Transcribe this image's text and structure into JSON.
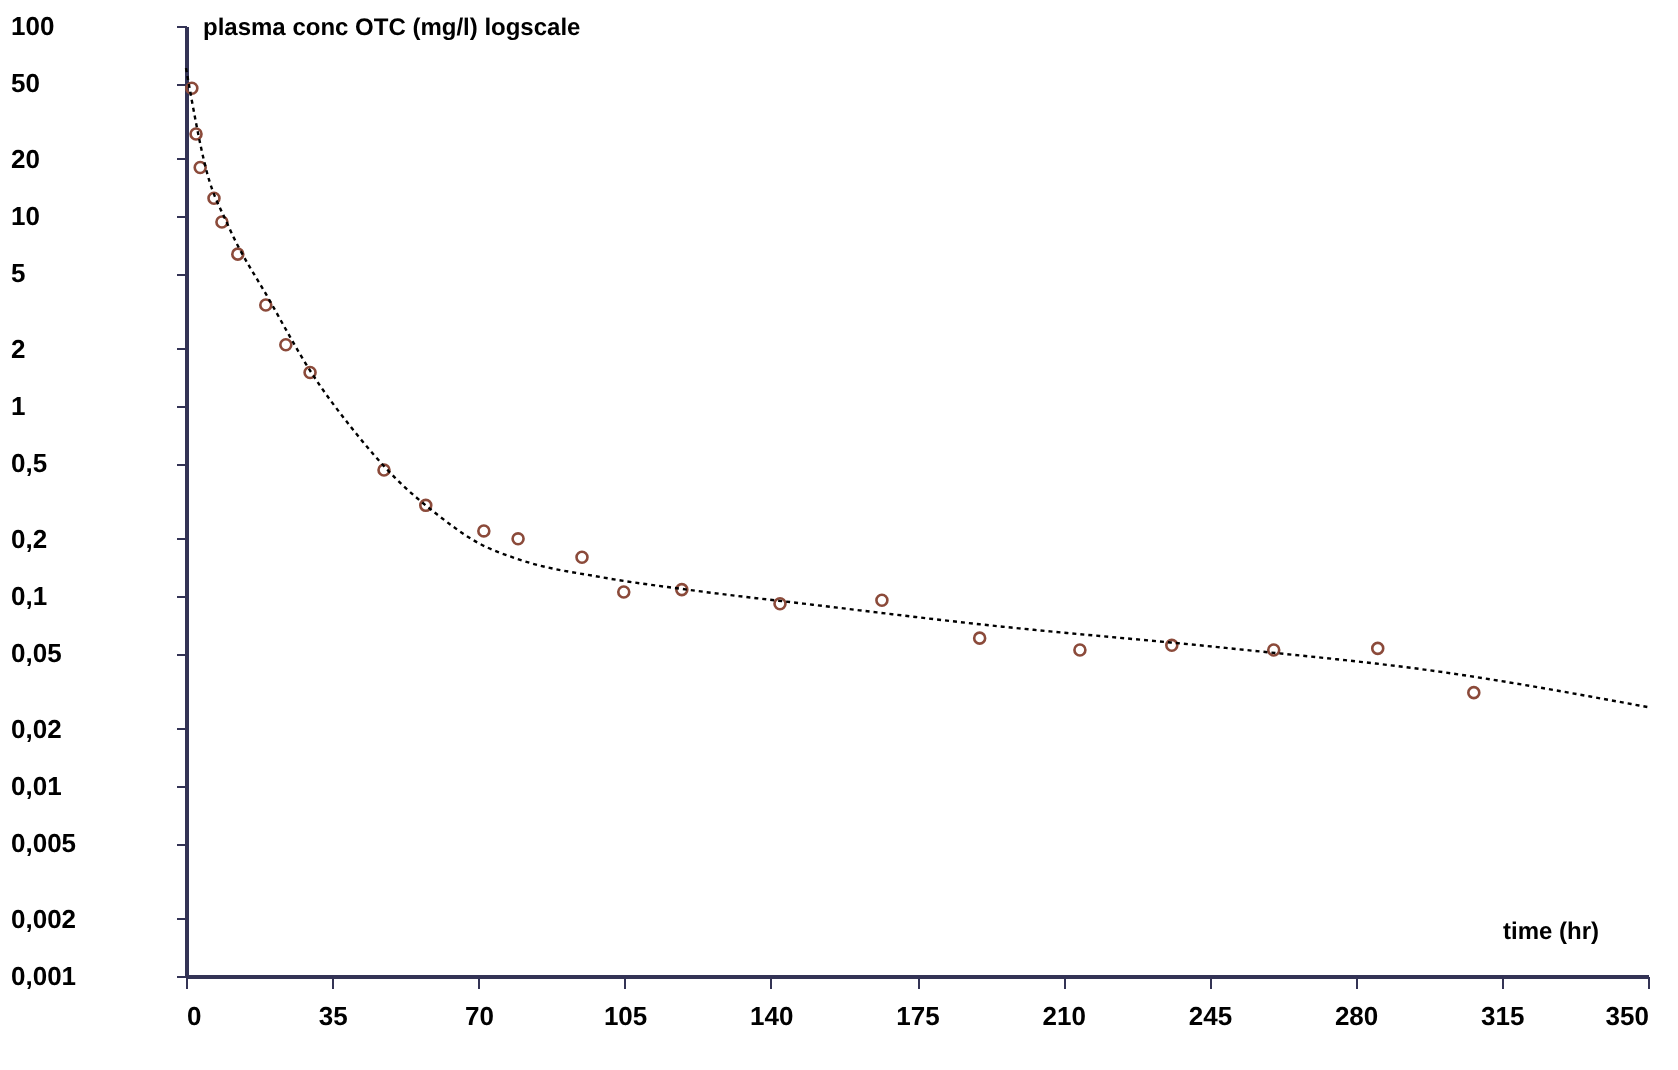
{
  "chart_data": {
    "type": "scatter",
    "ylabel": "plasma conc OTC (mg/l) logscale",
    "xlabel": "time (hr)",
    "log": "y",
    "grid": false,
    "xlim": [
      0,
      350
    ],
    "xticks": [
      0,
      35,
      70,
      105,
      140,
      175,
      210,
      245,
      280,
      315,
      350
    ],
    "ylim": [
      0.001,
      100
    ],
    "yticks": [
      100,
      50,
      20,
      10,
      5,
      2,
      1,
      {
        "value": 0.5,
        "label": "0,5"
      },
      {
        "value": 0.2,
        "label": "0,2"
      },
      {
        "value": 0.1,
        "label": "0,1"
      },
      {
        "value": 0.05,
        "label": "0,05"
      },
      {
        "value": 0.02,
        "label": "0,02"
      },
      {
        "value": 0.01,
        "label": "0,01"
      },
      {
        "value": 0.005,
        "label": "0,005"
      },
      {
        "value": 0.002,
        "label": "0,002"
      },
      {
        "value": 0.001,
        "label": "0,001"
      }
    ],
    "series": [
      {
        "marker": "circle",
        "color": "#8b4a3a",
        "x": [
          1.4,
          2.4,
          3.4,
          6.7,
          8.6,
          12.4,
          19.1,
          23.9,
          29.7,
          47.4,
          57.4,
          71.3,
          79.5,
          94.8,
          104.8,
          118.7,
          142.2,
          166.6,
          190,
          214,
          236,
          260.4,
          285.3,
          308.3
        ],
        "values": [
          47,
          27,
          18,
          12.4,
          9.3,
          6.3,
          3.4,
          2.1,
          1.5,
          0.46,
          0.3,
          0.22,
          0.2,
          0.16,
          0.105,
          0.108,
          0.091,
          0.095,
          0.06,
          0.052,
          0.055,
          0.052,
          0.053,
          0.031
        ]
      },
      {
        "type": "line",
        "line_style": "dotted",
        "color": "#000000",
        "x": [
          0,
          5,
          10,
          20,
          30,
          40,
          50,
          60,
          70,
          80,
          100,
          120,
          150,
          190,
          250,
          300,
          350
        ],
        "values": [
          60,
          17,
          9,
          3.6,
          1.5,
          0.75,
          0.42,
          0.27,
          0.19,
          0.155,
          0.125,
          0.108,
          0.09,
          0.071,
          0.053,
          0.04,
          0.026
        ]
      }
    ]
  }
}
